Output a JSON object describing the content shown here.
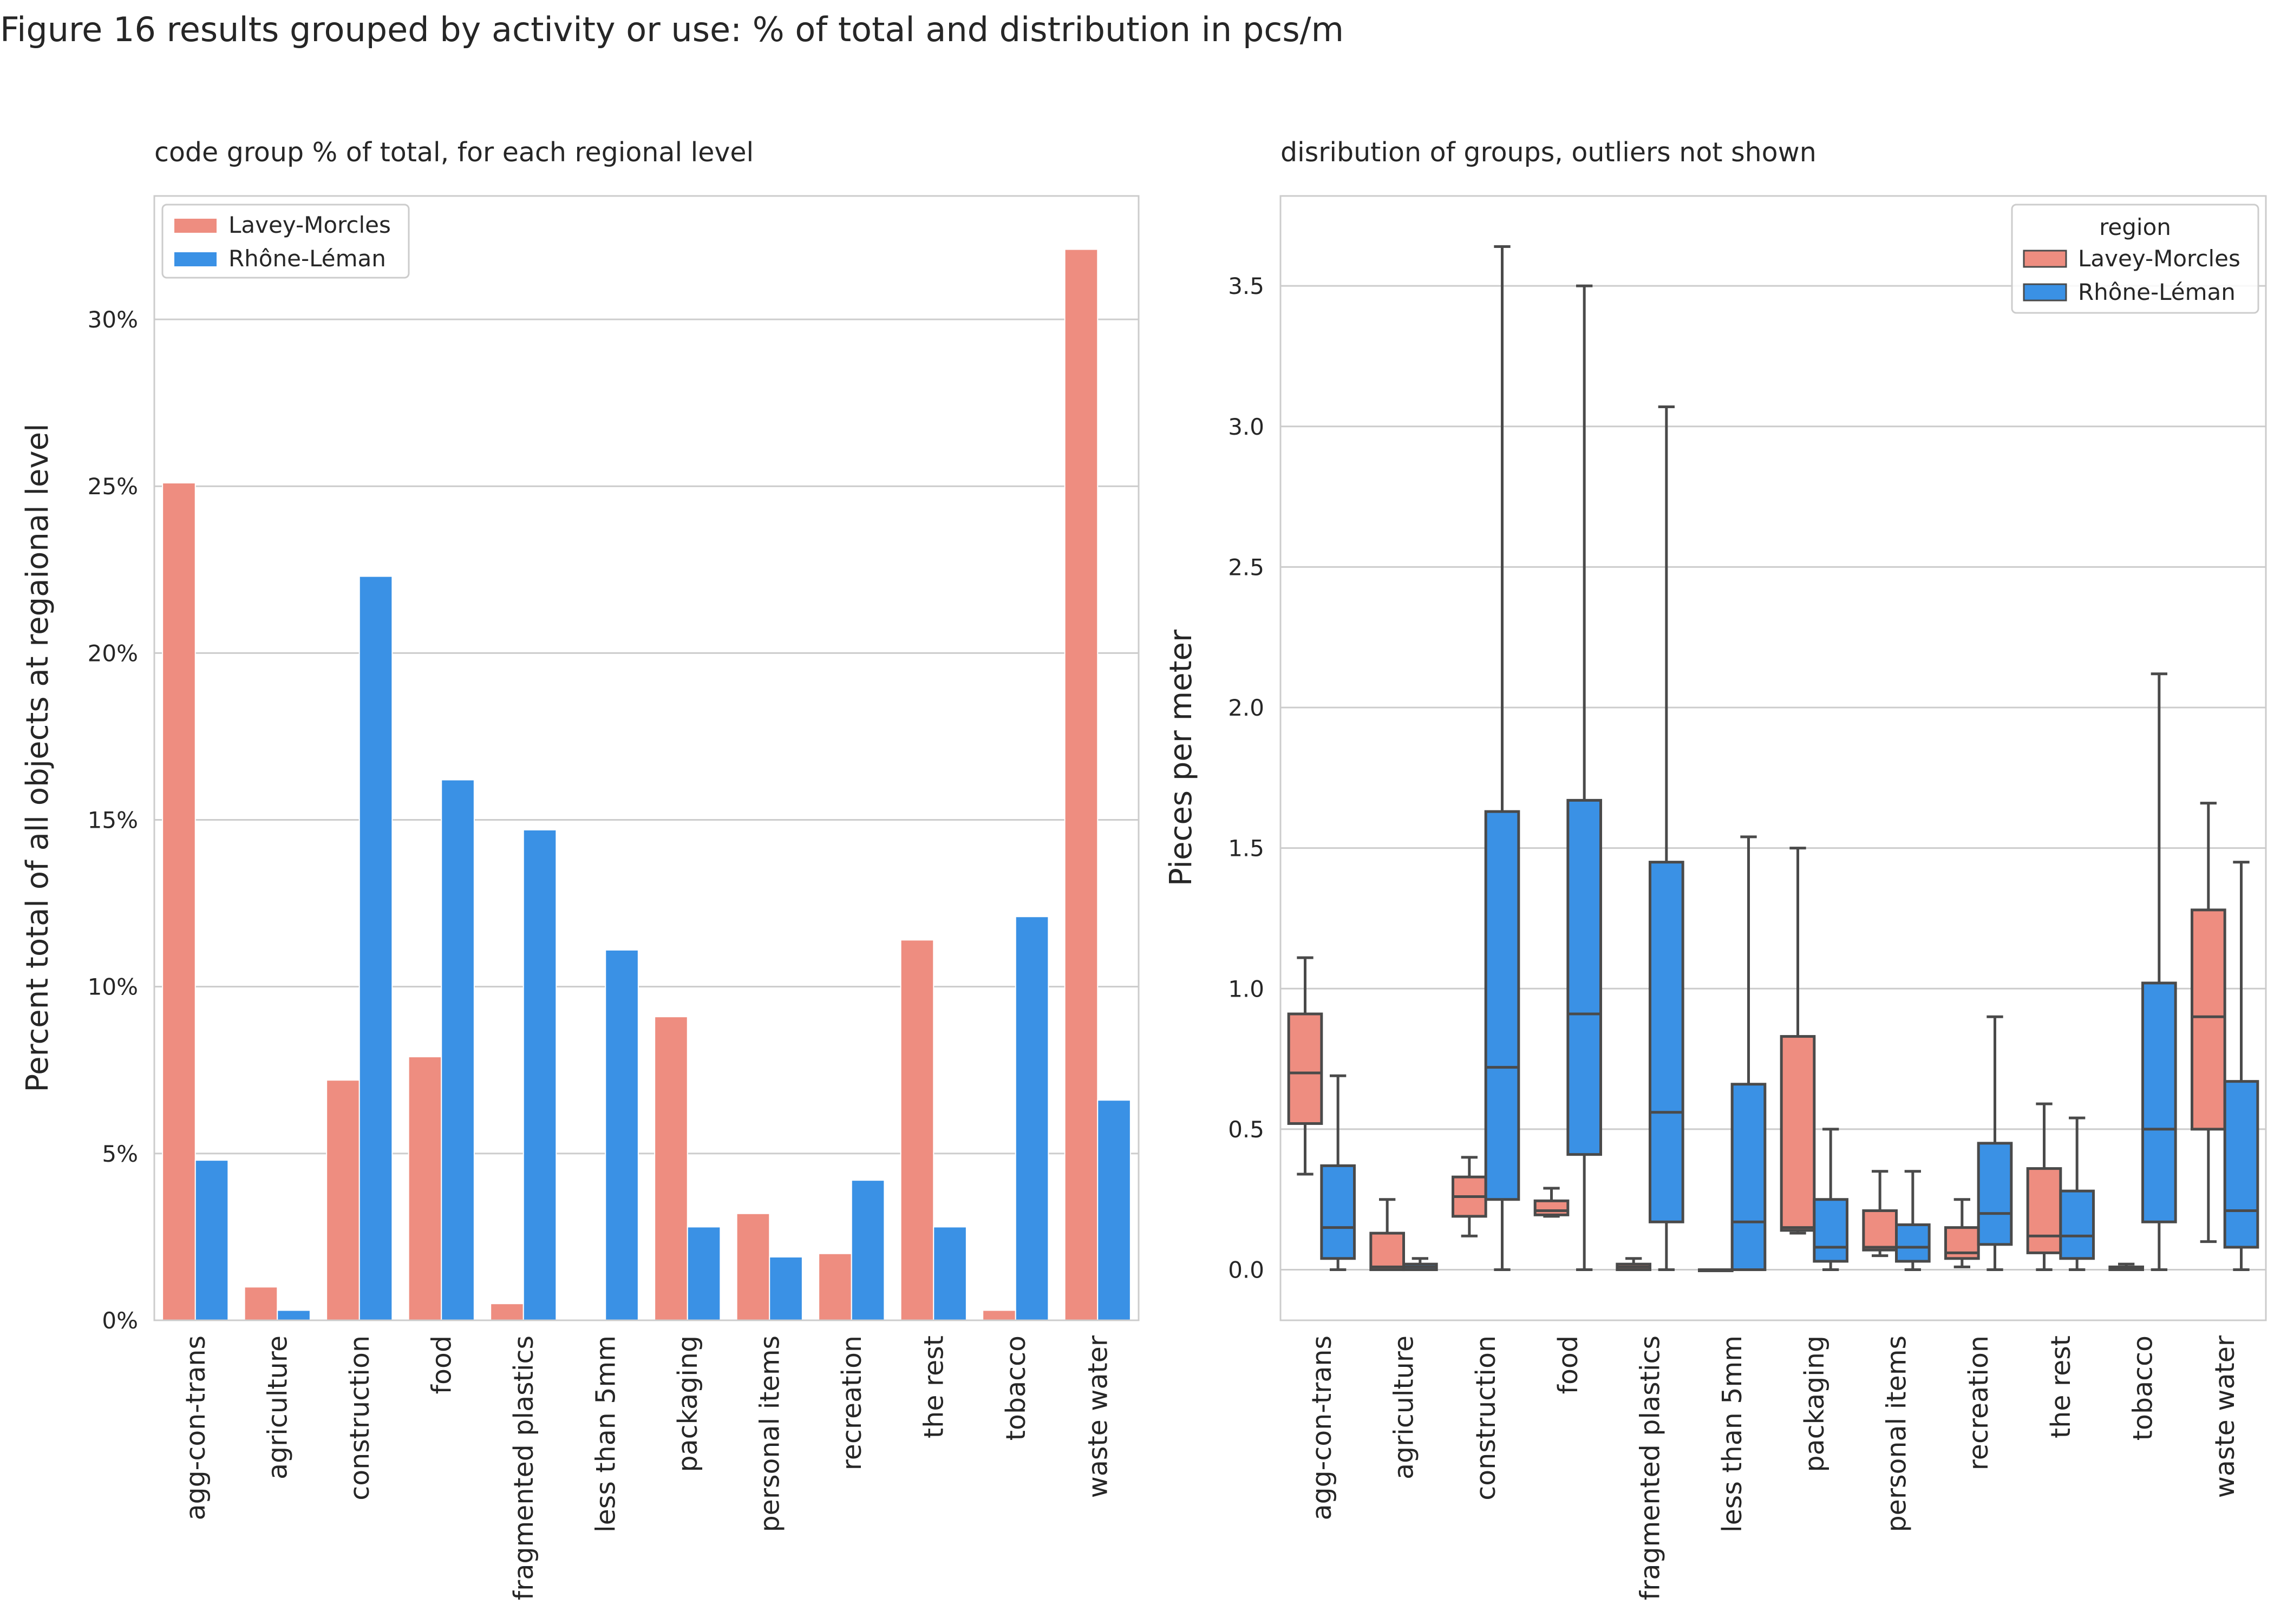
{
  "figure": {
    "title": "Figure 16 results grouped by activity or use: % of total and distribution in pcs/m"
  },
  "colors": {
    "lavey": "#EE8D80",
    "rhone": "#3A91E5",
    "grid": "#CCCCCC",
    "axis_frame": "#CCCCCC",
    "box_line": "#4A4A4A"
  },
  "chart_data": [
    {
      "type": "bar",
      "title": "code group % of total, for each regional level",
      "xlabel": "",
      "ylabel": "Percent total of all objects at regaional level",
      "categories": [
        "agg-con-trans",
        "agriculture",
        "construction",
        "food",
        "fragmented plastics",
        "less than 5mm",
        "packaging",
        "personal items",
        "recreation",
        "the rest",
        "tobacco",
        "waste water"
      ],
      "series": [
        {
          "name": "Lavey-Morcles",
          "values": [
            25.1,
            1.0,
            7.2,
            7.9,
            0.5,
            0.0,
            9.1,
            3.2,
            2.0,
            11.4,
            0.3,
            32.1
          ]
        },
        {
          "name": "Rhône-Léman",
          "values": [
            4.8,
            0.3,
            22.3,
            16.2,
            14.7,
            11.1,
            2.8,
            1.9,
            4.2,
            2.8,
            12.1,
            6.6
          ]
        }
      ],
      "ylim": [
        0,
        33.7
      ],
      "yticks": [
        0,
        5,
        10,
        15,
        20,
        25,
        30
      ],
      "ytick_labels": [
        "0%",
        "5%",
        "10%",
        "15%",
        "20%",
        "25%",
        "30%"
      ],
      "grid": true,
      "legend": {
        "title": "",
        "position": "top-left",
        "entries": [
          "Lavey-Morcles",
          "Rhône-Léman"
        ]
      }
    },
    {
      "type": "box",
      "title": "disribution of groups, outliers not shown",
      "xlabel": "",
      "ylabel": "Pieces per meter",
      "categories": [
        "agg-con-trans",
        "agriculture",
        "construction",
        "food",
        "fragmented plastics",
        "less than 5mm",
        "packaging",
        "personal items",
        "recreation",
        "the rest",
        "tobacco",
        "waste water"
      ],
      "series": [
        {
          "name": "Lavey-Morcles",
          "boxes": [
            {
              "min": 0.34,
              "q1": 0.52,
              "median": 0.7,
              "q3": 0.91,
              "max": 1.11
            },
            {
              "min": 0.0,
              "q1": 0.0,
              "median": 0.01,
              "q3": 0.13,
              "max": 0.25
            },
            {
              "min": 0.12,
              "q1": 0.19,
              "median": 0.26,
              "q3": 0.33,
              "max": 0.4
            },
            {
              "min": 0.19,
              "q1": 0.195,
              "median": 0.21,
              "q3": 0.245,
              "max": 0.29
            },
            {
              "min": 0.0,
              "q1": 0.0,
              "median": 0.01,
              "q3": 0.02,
              "max": 0.04
            },
            {
              "min": 0.0,
              "q1": 0.0,
              "median": 0.0,
              "q3": 0.0,
              "max": 0.0
            },
            {
              "min": 0.13,
              "q1": 0.14,
              "median": 0.15,
              "q3": 0.83,
              "max": 1.5
            },
            {
              "min": 0.05,
              "q1": 0.07,
              "median": 0.08,
              "q3": 0.21,
              "max": 0.35
            },
            {
              "min": 0.01,
              "q1": 0.04,
              "median": 0.06,
              "q3": 0.15,
              "max": 0.25
            },
            {
              "min": 0.0,
              "q1": 0.06,
              "median": 0.12,
              "q3": 0.36,
              "max": 0.59
            },
            {
              "min": 0.0,
              "q1": 0.0,
              "median": 0.005,
              "q3": 0.01,
              "max": 0.02
            },
            {
              "min": 0.1,
              "q1": 0.5,
              "median": 0.9,
              "q3": 1.28,
              "max": 1.66
            }
          ]
        },
        {
          "name": "Rhône-Léman",
          "boxes": [
            {
              "min": 0.0,
              "q1": 0.04,
              "median": 0.15,
              "q3": 0.37,
              "max": 0.69
            },
            {
              "min": 0.0,
              "q1": 0.0,
              "median": 0.01,
              "q3": 0.02,
              "max": 0.04
            },
            {
              "min": 0.0,
              "q1": 0.25,
              "median": 0.72,
              "q3": 1.63,
              "max": 3.64
            },
            {
              "min": 0.0,
              "q1": 0.41,
              "median": 0.91,
              "q3": 1.67,
              "max": 3.5
            },
            {
              "min": 0.0,
              "q1": 0.17,
              "median": 0.56,
              "q3": 1.45,
              "max": 3.07
            },
            {
              "min": 0.0,
              "q1": 0.0,
              "median": 0.17,
              "q3": 0.66,
              "max": 1.54
            },
            {
              "min": 0.0,
              "q1": 0.03,
              "median": 0.08,
              "q3": 0.25,
              "max": 0.5
            },
            {
              "min": 0.0,
              "q1": 0.03,
              "median": 0.08,
              "q3": 0.16,
              "max": 0.35
            },
            {
              "min": 0.0,
              "q1": 0.09,
              "median": 0.2,
              "q3": 0.45,
              "max": 0.9
            },
            {
              "min": 0.0,
              "q1": 0.04,
              "median": 0.12,
              "q3": 0.28,
              "max": 0.54
            },
            {
              "min": 0.0,
              "q1": 0.17,
              "median": 0.5,
              "q3": 1.02,
              "max": 2.12
            },
            {
              "min": 0.0,
              "q1": 0.08,
              "median": 0.21,
              "q3": 0.67,
              "max": 1.45
            }
          ]
        }
      ],
      "ylim": [
        -0.18,
        3.82
      ],
      "yticks": [
        0,
        0.5,
        1.0,
        1.5,
        2.0,
        2.5,
        3.0,
        3.5
      ],
      "ytick_labels": [
        "0.0",
        "0.5",
        "1.0",
        "1.5",
        "2.0",
        "2.5",
        "3.0",
        "3.5"
      ],
      "grid": true,
      "legend": {
        "title": "region",
        "position": "top-right",
        "entries": [
          "Lavey-Morcles",
          "Rhône-Léman"
        ]
      }
    }
  ]
}
